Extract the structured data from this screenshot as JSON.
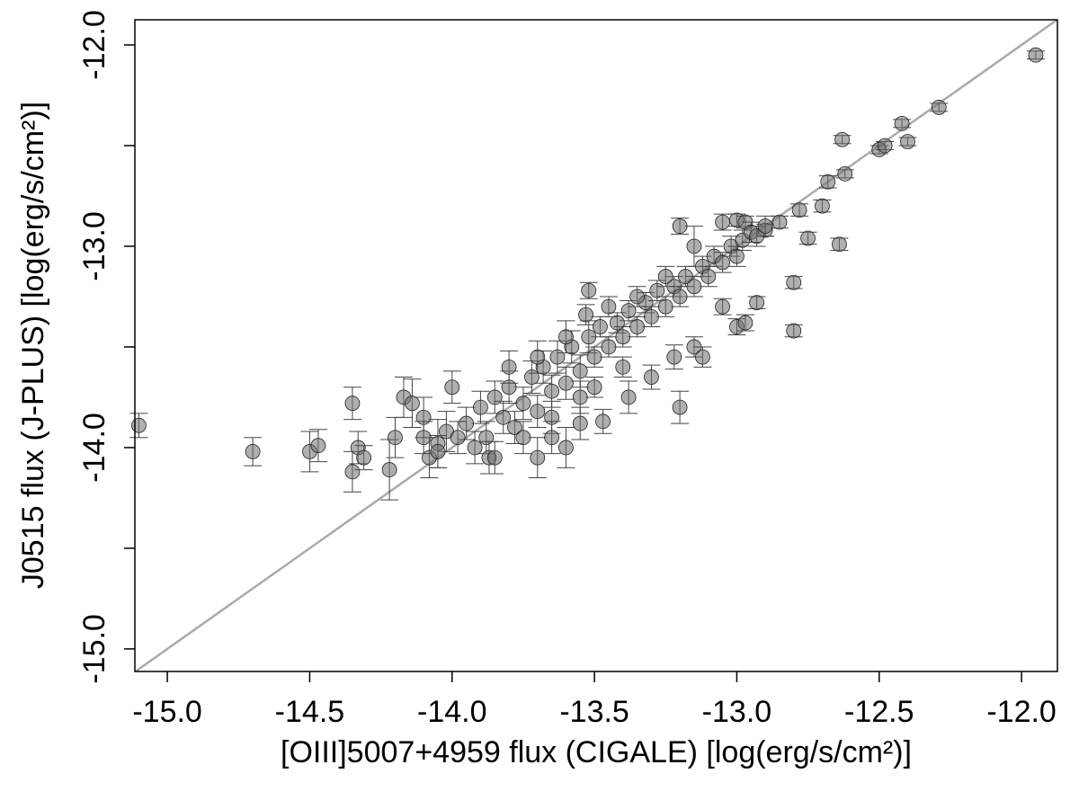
{
  "chart_data": {
    "type": "scatter",
    "x_label": "[OIII]5007+4959 flux (CIGALE) [log(erg/s/cm²)]",
    "y_label": "J0515 flux (J-PLUS) [log(erg/s/cm²)]",
    "xlim": [
      -15.114,
      -11.874
    ],
    "ylim": [
      -15.112,
      -11.875
    ],
    "xticks": [
      {
        "value": -15,
        "label": "-15.0"
      },
      {
        "value": -14.5,
        "label": "-14.5"
      },
      {
        "value": -14,
        "label": "-14.0"
      },
      {
        "value": -13.5,
        "label": "-13.5"
      },
      {
        "value": -13,
        "label": "-13.0"
      },
      {
        "value": -12.5,
        "label": "-12.5"
      },
      {
        "value": -12,
        "label": "-12.0"
      }
    ],
    "yticks": [
      {
        "value": -15,
        "label": "-15.0"
      },
      {
        "value": -14,
        "label": "-14.0"
      },
      {
        "value": -13,
        "label": "-13.0"
      },
      {
        "value": -12,
        "label": "-12.0"
      }
    ],
    "yminorticks": [
      -14.5,
      -13.5,
      -12.5
    ],
    "reference_line": "y=x",
    "reference_color": "#aaaaaa",
    "series": [
      {
        "color": "#6e6e6e",
        "x": [
          -15.1,
          -14.7,
          -14.5,
          -14.47,
          -14.35,
          -14.35,
          -14.33,
          -14.31,
          -14.22,
          -14.2,
          -14.17,
          -14.14,
          -14.1,
          -14.08,
          -14.05,
          -14.02,
          -14.0,
          -13.7,
          -13.6,
          -13.55,
          -13.47,
          -13.38,
          -13.3,
          -13.2,
          -13.22,
          -13.15,
          -13.12,
          -13.05,
          -13.0,
          -12.97,
          -12.93,
          -12.8,
          -12.8,
          -13.52,
          -13.53,
          -13.2,
          -13.15,
          -13.05,
          -13.0,
          -12.97,
          -12.9,
          -12.85,
          -12.78,
          -12.75,
          -12.7,
          -12.68,
          -12.64,
          -12.62,
          -12.63,
          -12.5,
          -12.48,
          -12.4,
          -12.42,
          -12.29,
          -11.95,
          -13.95,
          -13.9,
          -13.88,
          -13.85,
          -13.82,
          -13.8,
          -13.78,
          -13.75,
          -13.72,
          -13.7,
          -13.68,
          -13.65,
          -13.63,
          -13.6,
          -13.58,
          -13.55,
          -13.52,
          -13.5,
          -13.48,
          -13.45,
          -13.42,
          -13.4,
          -13.38,
          -13.35,
          -13.32,
          -13.3,
          -13.28,
          -13.25,
          -13.22,
          -13.2,
          -13.18,
          -13.15,
          -13.12,
          -13.1,
          -13.08,
          -13.05,
          -13.02,
          -13.0,
          -12.98,
          -12.95,
          -12.93,
          -12.9,
          -13.92,
          -13.98,
          -14.05,
          -13.87,
          -13.75,
          -13.65,
          -13.6,
          -13.7,
          -13.8,
          -13.4,
          -13.45,
          -13.35,
          -13.25,
          -13.55,
          -13.5,
          -13.85,
          -14.1,
          -13.65
        ],
        "values": [
          -13.89,
          -14.02,
          -14.02,
          -13.99,
          -13.78,
          -14.12,
          -14.0,
          -14.05,
          -14.11,
          -13.95,
          -13.75,
          -13.78,
          -13.85,
          -14.05,
          -13.98,
          -13.92,
          -13.7,
          -14.05,
          -14.0,
          -13.88,
          -13.87,
          -13.75,
          -13.65,
          -13.8,
          -13.55,
          -13.5,
          -13.55,
          -13.3,
          -13.4,
          -13.38,
          -13.28,
          -13.18,
          -13.42,
          -13.22,
          -13.34,
          -12.9,
          -13.0,
          -12.88,
          -12.87,
          -12.88,
          -12.92,
          -12.88,
          -12.82,
          -12.96,
          -12.8,
          -12.68,
          -12.99,
          -12.64,
          -12.47,
          -12.52,
          -12.5,
          -12.48,
          -12.39,
          -12.31,
          -12.05,
          -13.88,
          -13.8,
          -13.95,
          -13.75,
          -13.85,
          -13.7,
          -13.9,
          -13.78,
          -13.65,
          -13.82,
          -13.6,
          -13.72,
          -13.55,
          -13.68,
          -13.5,
          -13.62,
          -13.45,
          -13.55,
          -13.4,
          -13.5,
          -13.38,
          -13.45,
          -13.32,
          -13.4,
          -13.28,
          -13.35,
          -13.22,
          -13.3,
          -13.2,
          -13.25,
          -13.15,
          -13.2,
          -13.1,
          -13.15,
          -13.05,
          -13.08,
          -13.0,
          -13.05,
          -12.97,
          -12.93,
          -12.95,
          -12.9,
          -14.0,
          -13.95,
          -14.02,
          -14.05,
          -13.95,
          -13.85,
          -13.45,
          -13.55,
          -13.6,
          -13.6,
          -13.3,
          -13.25,
          -13.15,
          -13.75,
          -13.7,
          -14.05,
          -13.95,
          -13.95
        ],
        "yerr": [
          0.06,
          0.07,
          0.1,
          0.08,
          0.08,
          0.1,
          0.08,
          0.06,
          0.15,
          0.1,
          0.1,
          0.12,
          0.1,
          0.1,
          0.12,
          0.1,
          0.08,
          0.1,
          0.1,
          0.08,
          0.06,
          0.08,
          0.06,
          0.08,
          0.06,
          0.05,
          0.05,
          0.04,
          0.04,
          0.04,
          0.03,
          0.03,
          0.03,
          0.04,
          0.05,
          0.04,
          0.1,
          0.04,
          0.03,
          0.03,
          0.03,
          0.03,
          0.03,
          0.03,
          0.03,
          0.03,
          0.03,
          0.02,
          0.02,
          0.02,
          0.02,
          0.02,
          0.02,
          0.02,
          0.02,
          0.08,
          0.08,
          0.08,
          0.08,
          0.08,
          0.08,
          0.08,
          0.08,
          0.08,
          0.08,
          0.08,
          0.08,
          0.08,
          0.08,
          0.08,
          0.08,
          0.08,
          0.05,
          0.05,
          0.05,
          0.05,
          0.05,
          0.05,
          0.05,
          0.05,
          0.05,
          0.05,
          0.05,
          0.05,
          0.05,
          0.05,
          0.05,
          0.05,
          0.05,
          0.05,
          0.05,
          0.05,
          0.05,
          0.05,
          0.05,
          0.05,
          0.05,
          0.08,
          0.08,
          0.08,
          0.08,
          0.08,
          0.08,
          0.08,
          0.08,
          0.08,
          0.05,
          0.05,
          0.05,
          0.05,
          0.08,
          0.05,
          0.08,
          0.08,
          0.08
        ]
      }
    ]
  }
}
